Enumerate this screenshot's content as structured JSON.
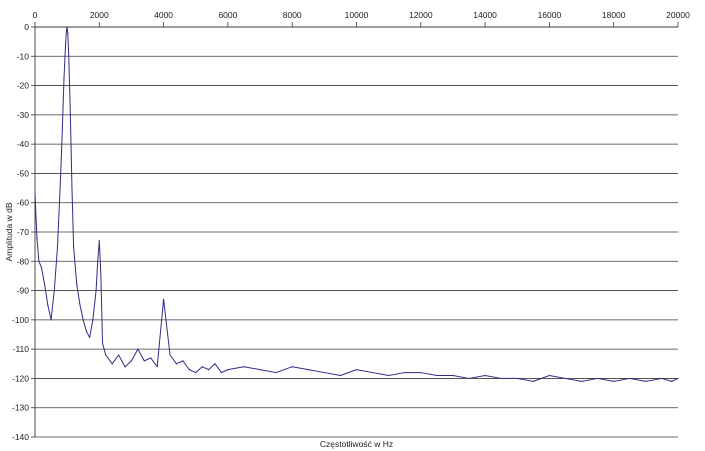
{
  "chart_data": {
    "type": "line",
    "title": "",
    "xlabel": "Częstotliwość w Hz",
    "ylabel": "Amplituda w dB",
    "xlim": [
      0,
      20000
    ],
    "ylim": [
      -140,
      0
    ],
    "x_ticks": [
      0,
      2000,
      4000,
      6000,
      8000,
      10000,
      12000,
      14000,
      16000,
      18000,
      20000
    ],
    "y_ticks": [
      0,
      -10,
      -20,
      -30,
      -40,
      -50,
      -60,
      -70,
      -80,
      -90,
      -100,
      -110,
      -120,
      -130,
      -140
    ],
    "x_axis_position": "top",
    "grid": "horizontal",
    "legend": "none",
    "line_color": "#2e2e86",
    "series": [
      {
        "x": [
          0,
          60,
          120,
          200,
          300,
          400,
          500,
          600,
          700,
          800,
          850,
          900,
          950,
          980,
          1000,
          1020,
          1050,
          1100,
          1150,
          1200,
          1300,
          1400,
          1500,
          1600,
          1700,
          1800,
          1900,
          1950,
          2000,
          2050,
          2100,
          2200,
          2400,
          2600,
          2800,
          3000,
          3200,
          3400,
          3600,
          3800,
          4000,
          4200,
          4400,
          4600,
          4800,
          5000,
          5200,
          5400,
          5600,
          5800,
          6000,
          6500,
          7000,
          7500,
          8000,
          8500,
          9000,
          9500,
          10000,
          10500,
          11000,
          11500,
          12000,
          12500,
          13000,
          13500,
          14000,
          14500,
          15000,
          15500,
          16000,
          16500,
          17000,
          17500,
          18000,
          18500,
          19000,
          19500,
          19800,
          20000
        ],
        "y": [
          -57,
          -72,
          -80,
          -82,
          -88,
          -95,
          -100,
          -90,
          -75,
          -50,
          -35,
          -18,
          -6,
          -1,
          0,
          -2,
          -10,
          -30,
          -55,
          -75,
          -88,
          -95,
          -100,
          -104,
          -106,
          -100,
          -90,
          -80,
          -73,
          -85,
          -108,
          -112,
          -115,
          -112,
          -116,
          -114,
          -110,
          -114,
          -113,
          -116,
          -93,
          -112,
          -115,
          -114,
          -117,
          -118,
          -116,
          -117,
          -115,
          -118,
          -117,
          -116,
          -117,
          -118,
          -116,
          -117,
          -118,
          -119,
          -117,
          -118,
          -119,
          -118,
          -118,
          -119,
          -119,
          -120,
          -119,
          -120,
          -120,
          -121,
          -119,
          -120,
          -121,
          -120,
          -121,
          -120,
          -121,
          -120,
          -121,
          -120
        ]
      }
    ]
  }
}
